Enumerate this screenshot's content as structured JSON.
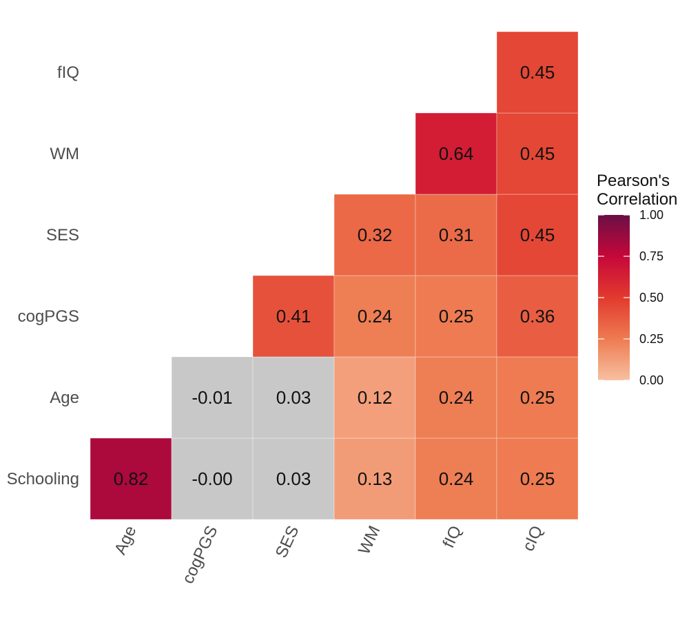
{
  "chart_data": {
    "type": "heatmap",
    "title": "",
    "xlabel": "",
    "ylabel": "",
    "x_categories": [
      "Age",
      "cogPGS",
      "SES",
      "WM",
      "fIQ",
      "cIQ"
    ],
    "y_categories": [
      "Schooling",
      "Age",
      "cogPGS",
      "SES",
      "WM",
      "fIQ"
    ],
    "cells": [
      {
        "x": "Age",
        "y": "Schooling",
        "value": 0.82,
        "label": "0.82"
      },
      {
        "x": "cogPGS",
        "y": "Schooling",
        "value": -0.0,
        "label": "-0.00"
      },
      {
        "x": "SES",
        "y": "Schooling",
        "value": 0.03,
        "label": "0.03"
      },
      {
        "x": "WM",
        "y": "Schooling",
        "value": 0.13,
        "label": "0.13"
      },
      {
        "x": "fIQ",
        "y": "Schooling",
        "value": 0.24,
        "label": "0.24"
      },
      {
        "x": "cIQ",
        "y": "Schooling",
        "value": 0.25,
        "label": "0.25"
      },
      {
        "x": "cogPGS",
        "y": "Age",
        "value": -0.01,
        "label": "-0.01"
      },
      {
        "x": "SES",
        "y": "Age",
        "value": 0.03,
        "label": "0.03"
      },
      {
        "x": "WM",
        "y": "Age",
        "value": 0.12,
        "label": "0.12"
      },
      {
        "x": "fIQ",
        "y": "Age",
        "value": 0.24,
        "label": "0.24"
      },
      {
        "x": "cIQ",
        "y": "Age",
        "value": 0.25,
        "label": "0.25"
      },
      {
        "x": "SES",
        "y": "cogPGS",
        "value": 0.41,
        "label": "0.41"
      },
      {
        "x": "WM",
        "y": "cogPGS",
        "value": 0.24,
        "label": "0.24"
      },
      {
        "x": "fIQ",
        "y": "cogPGS",
        "value": 0.25,
        "label": "0.25"
      },
      {
        "x": "cIQ",
        "y": "cogPGS",
        "value": 0.36,
        "label": "0.36"
      },
      {
        "x": "WM",
        "y": "SES",
        "value": 0.32,
        "label": "0.32"
      },
      {
        "x": "fIQ",
        "y": "SES",
        "value": 0.31,
        "label": "0.31"
      },
      {
        "x": "cIQ",
        "y": "SES",
        "value": 0.45,
        "label": "0.45"
      },
      {
        "x": "fIQ",
        "y": "WM",
        "value": 0.64,
        "label": "0.64"
      },
      {
        "x": "cIQ",
        "y": "WM",
        "value": 0.45,
        "label": "0.45"
      },
      {
        "x": "cIQ",
        "y": "fIQ",
        "value": 0.45,
        "label": "0.45"
      }
    ],
    "nonsignificant_color": "#c8c8c8",
    "nonsignificant_threshold": 0.05,
    "color_scale": {
      "domain": [
        0,
        1
      ],
      "stops": [
        {
          "value": 0.0,
          "color": "#f7c0a1"
        },
        {
          "value": 0.25,
          "color": "#ee7b51"
        },
        {
          "value": 0.5,
          "color": "#e23a2e"
        },
        {
          "value": 0.75,
          "color": "#c6073a"
        },
        {
          "value": 1.0,
          "color": "#6a0f45"
        }
      ]
    },
    "legend": {
      "title_lines": [
        "Pearson's",
        "Correlation"
      ],
      "ticks": [
        "1.00",
        "0.75",
        "0.50",
        "0.25",
        "0.00"
      ],
      "tick_values": [
        1.0,
        0.75,
        0.5,
        0.25,
        0.0
      ],
      "position": "right"
    }
  }
}
